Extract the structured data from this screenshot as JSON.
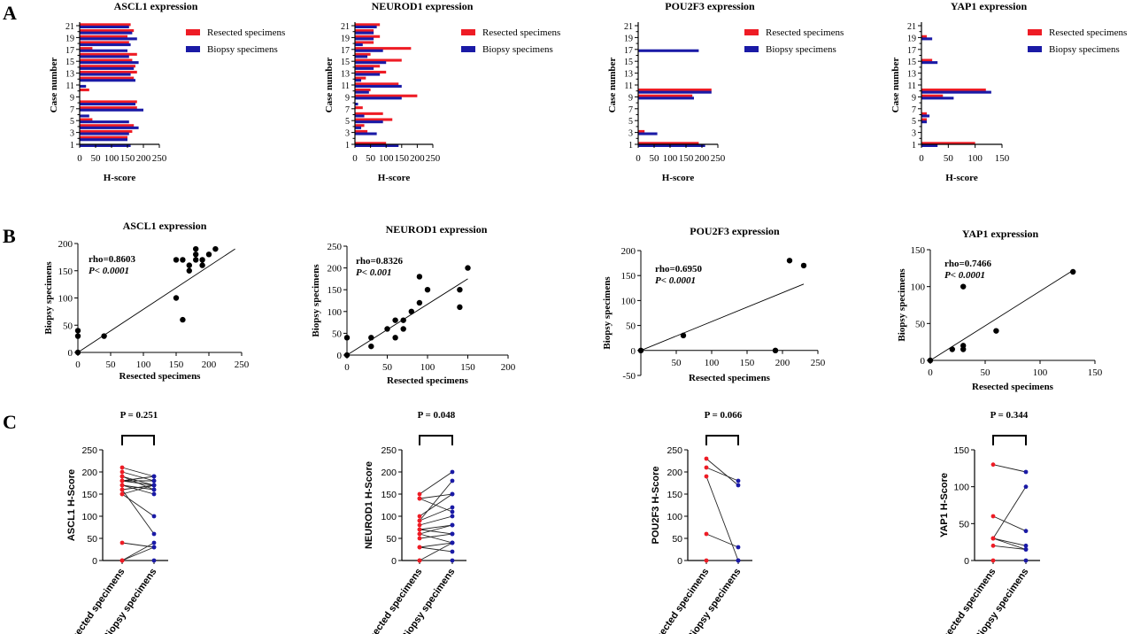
{
  "panel_labels": [
    "A",
    "B",
    "C"
  ],
  "colors": {
    "resected": "#ee1c25",
    "biopsy": "#1a1aa6",
    "ink": "#000000"
  },
  "chart_data": [
    {
      "id": "a-ascl1",
      "type": "bar",
      "orientation": "horizontal",
      "title": "ASCL1 expression",
      "xlabel": "H-score",
      "ylabel": "Case number",
      "xlim": [
        0,
        250
      ],
      "xticks": [
        0,
        50,
        100,
        150,
        200,
        250
      ],
      "ylim": [
        1,
        21
      ],
      "yticks": [
        1,
        3,
        5,
        7,
        9,
        11,
        13,
        15,
        17,
        19,
        21
      ],
      "legend": [
        "Resected specimens",
        "Biopsy specimens"
      ],
      "legend_position": "top-right",
      "resected": [
        0,
        150,
        165,
        170,
        40,
        0,
        180,
        180,
        0,
        30,
        0,
        170,
        180,
        175,
        165,
        180,
        40,
        155,
        150,
        170,
        160
      ],
      "biopsy": [
        160,
        150,
        155,
        185,
        155,
        30,
        200,
        175,
        0,
        0,
        20,
        175,
        160,
        170,
        185,
        155,
        150,
        160,
        180,
        165,
        155
      ]
    },
    {
      "id": "a-neurod1",
      "type": "bar",
      "orientation": "horizontal",
      "title": "NEUROD1 expression",
      "xlabel": "H-score",
      "ylabel": "Case number",
      "xlim": [
        0,
        250
      ],
      "xticks": [
        0,
        50,
        100,
        150,
        200,
        250
      ],
      "ylim": [
        1,
        21
      ],
      "yticks": [
        1,
        3,
        5,
        7,
        9,
        11,
        13,
        15,
        17,
        19,
        21
      ],
      "legend": [
        "Resected specimens",
        "Biopsy specimens"
      ],
      "legend_position": "top-right",
      "resected": [
        100,
        0,
        40,
        30,
        120,
        90,
        25,
        0,
        200,
        50,
        140,
        35,
        100,
        80,
        150,
        50,
        180,
        60,
        80,
        60,
        80
      ],
      "biopsy": [
        140,
        0,
        70,
        20,
        90,
        30,
        0,
        10,
        150,
        45,
        150,
        20,
        80,
        60,
        100,
        40,
        90,
        25,
        60,
        60,
        70
      ]
    },
    {
      "id": "a-pou2f3",
      "type": "bar",
      "orientation": "horizontal",
      "title": "POU2F3 expression",
      "xlabel": "H-score",
      "ylabel": "Case number",
      "xlim": [
        0,
        250
      ],
      "xticks": [
        0,
        50,
        100,
        150,
        200,
        250
      ],
      "ylim": [
        1,
        21
      ],
      "yticks": [
        1,
        3,
        5,
        7,
        9,
        11,
        13,
        15,
        17,
        19,
        21
      ],
      "legend": [
        "Resected specimens",
        "Biopsy specimens"
      ],
      "legend_position": "top-right",
      "resected": [
        190,
        0,
        20,
        0,
        0,
        0,
        0,
        0,
        170,
        230,
        0,
        0,
        0,
        0,
        0,
        0,
        0,
        0,
        0,
        0,
        0
      ],
      "biopsy": [
        210,
        0,
        60,
        0,
        0,
        0,
        0,
        0,
        175,
        230,
        0,
        0,
        0,
        0,
        0,
        0,
        190,
        0,
        0,
        0,
        0
      ]
    },
    {
      "id": "a-yap1",
      "type": "bar",
      "orientation": "horizontal",
      "title": "YAP1 expression",
      "xlabel": "H-score",
      "ylabel": "Case number",
      "xlim": [
        0,
        150
      ],
      "xticks": [
        0,
        50,
        100,
        150
      ],
      "ylim": [
        1,
        21
      ],
      "yticks": [
        1,
        3,
        5,
        7,
        9,
        11,
        13,
        15,
        17,
        19,
        21
      ],
      "legend": [
        "Resected specimens",
        "Biopsy specimens"
      ],
      "legend_position": "top-right",
      "resected": [
        100,
        0,
        0,
        0,
        10,
        10,
        0,
        0,
        40,
        120,
        0,
        0,
        0,
        0,
        20,
        0,
        0,
        0,
        10,
        0,
        0
      ],
      "biopsy": [
        30,
        0,
        0,
        0,
        10,
        15,
        0,
        0,
        60,
        130,
        0,
        0,
        0,
        0,
        30,
        0,
        0,
        0,
        20,
        0,
        0
      ]
    },
    {
      "id": "b-ascl1",
      "type": "scatter",
      "title": "ASCL1 expression",
      "xlabel": "Resected specimens",
      "ylabel": "Biopsy specimens",
      "xlim": [
        0,
        250
      ],
      "xticks": [
        0,
        50,
        100,
        150,
        200,
        250
      ],
      "ylim": [
        0,
        200
      ],
      "yticks": [
        0,
        50,
        100,
        150,
        200
      ],
      "rho": "rho=0.8603",
      "p": "P< 0.0001",
      "fit": [
        [
          0,
          0
        ],
        [
          240,
          190
        ]
      ],
      "points": [
        [
          0,
          0
        ],
        [
          0,
          30
        ],
        [
          0,
          40
        ],
        [
          40,
          30
        ],
        [
          150,
          170
        ],
        [
          150,
          100
        ],
        [
          160,
          170
        ],
        [
          160,
          60
        ],
        [
          170,
          150
        ],
        [
          170,
          160
        ],
        [
          180,
          170
        ],
        [
          180,
          180
        ],
        [
          180,
          190
        ],
        [
          190,
          170
        ],
        [
          190,
          160
        ],
        [
          200,
          180
        ],
        [
          210,
          190
        ]
      ]
    },
    {
      "id": "b-neurod1",
      "type": "scatter",
      "title": "NEUROD1 expression",
      "xlabel": "Resected specimens",
      "ylabel": "Biopsy specimens",
      "xlim": [
        0,
        200
      ],
      "xticks": [
        0,
        50,
        100,
        150,
        200
      ],
      "ylim": [
        0,
        250
      ],
      "yticks": [
        0,
        50,
        100,
        150,
        200,
        250
      ],
      "rho": "rho=0.8326",
      "p": "P< 0.001",
      "fit": [
        [
          0,
          0
        ],
        [
          150,
          175
        ]
      ],
      "points": [
        [
          0,
          0
        ],
        [
          0,
          40
        ],
        [
          30,
          20
        ],
        [
          30,
          40
        ],
        [
          50,
          60
        ],
        [
          60,
          40
        ],
        [
          60,
          80
        ],
        [
          70,
          60
        ],
        [
          70,
          80
        ],
        [
          80,
          100
        ],
        [
          90,
          120
        ],
        [
          90,
          180
        ],
        [
          100,
          150
        ],
        [
          140,
          110
        ],
        [
          140,
          150
        ],
        [
          150,
          200
        ]
      ]
    },
    {
      "id": "b-pou2f3",
      "type": "scatter",
      "title": "POU2F3 expression",
      "xlabel": "Resected specimens",
      "ylabel": "Biopsy specimens",
      "xlim": [
        0,
        250
      ],
      "xticks": [
        50,
        100,
        150,
        200,
        250
      ],
      "ylim": [
        -50,
        200
      ],
      "yticks": [
        -50,
        0,
        50,
        100,
        150,
        200
      ],
      "rho": "rho=0.6950",
      "p": "P< 0.0001",
      "fit": [
        [
          0,
          0
        ],
        [
          230,
          133
        ]
      ],
      "points": [
        [
          0,
          0
        ],
        [
          60,
          30
        ],
        [
          190,
          0
        ],
        [
          210,
          180
        ],
        [
          230,
          170
        ]
      ]
    },
    {
      "id": "b-yap1",
      "type": "scatter",
      "title": "YAP1 expression",
      "xlabel": "Resected specimens",
      "ylabel": "Biopsy specimens",
      "xlim": [
        0,
        150
      ],
      "xticks": [
        0,
        50,
        100,
        150
      ],
      "ylim": [
        0,
        150
      ],
      "yticks": [
        0,
        50,
        100,
        150
      ],
      "rho": "rho=0.7466",
      "p": "P< 0.0001",
      "fit": [
        [
          0,
          0
        ],
        [
          130,
          122
        ]
      ],
      "points": [
        [
          0,
          0
        ],
        [
          20,
          15
        ],
        [
          30,
          15
        ],
        [
          30,
          20
        ],
        [
          30,
          100
        ],
        [
          60,
          40
        ],
        [
          130,
          120
        ]
      ]
    },
    {
      "id": "c-ascl1",
      "type": "paired",
      "ylabel": "ASCL1 H-Score",
      "pvalue": "P = 0.251",
      "categories": [
        "Resected specimens",
        "Biopsy specimens"
      ],
      "ylim": [
        0,
        250
      ],
      "yticks": [
        0,
        50,
        100,
        150,
        200,
        250
      ],
      "pairs": [
        [
          0,
          0
        ],
        [
          0,
          30
        ],
        [
          0,
          40
        ],
        [
          40,
          30
        ],
        [
          150,
          170
        ],
        [
          150,
          100
        ],
        [
          160,
          170
        ],
        [
          160,
          60
        ],
        [
          170,
          150
        ],
        [
          170,
          160
        ],
        [
          180,
          170
        ],
        [
          180,
          180
        ],
        [
          180,
          190
        ],
        [
          190,
          170
        ],
        [
          190,
          160
        ],
        [
          200,
          180
        ],
        [
          210,
          190
        ]
      ]
    },
    {
      "id": "c-neurod1",
      "type": "paired",
      "ylabel": "NEUROD1 H-Score",
      "pvalue": "P = 0.048",
      "categories": [
        "Resected specimens",
        "Biopsy specimens"
      ],
      "ylim": [
        0,
        250
      ],
      "yticks": [
        0,
        50,
        100,
        150,
        200,
        250
      ],
      "pairs": [
        [
          0,
          0
        ],
        [
          0,
          40
        ],
        [
          30,
          20
        ],
        [
          30,
          40
        ],
        [
          50,
          60
        ],
        [
          60,
          40
        ],
        [
          60,
          80
        ],
        [
          70,
          60
        ],
        [
          70,
          80
        ],
        [
          80,
          100
        ],
        [
          90,
          120
        ],
        [
          90,
          180
        ],
        [
          100,
          150
        ],
        [
          140,
          110
        ],
        [
          140,
          150
        ],
        [
          150,
          200
        ]
      ]
    },
    {
      "id": "c-pou2f3",
      "type": "paired",
      "ylabel": "POU2F3 H-Score",
      "pvalue": "P = 0.066",
      "categories": [
        "Resected specimens",
        "Biopsy specimens"
      ],
      "ylim": [
        0,
        250
      ],
      "yticks": [
        0,
        50,
        100,
        150,
        200,
        250
      ],
      "pairs": [
        [
          0,
          0
        ],
        [
          60,
          30
        ],
        [
          190,
          0
        ],
        [
          210,
          180
        ],
        [
          230,
          170
        ]
      ]
    },
    {
      "id": "c-yap1",
      "type": "paired",
      "ylabel": "YAP1 H-Score",
      "pvalue": "P = 0.344",
      "categories": [
        "Resected specimens",
        "Biopsy specimens"
      ],
      "ylim": [
        0,
        150
      ],
      "yticks": [
        0,
        50,
        100,
        150
      ],
      "pairs": [
        [
          0,
          0
        ],
        [
          20,
          15
        ],
        [
          30,
          15
        ],
        [
          30,
          20
        ],
        [
          30,
          100
        ],
        [
          60,
          40
        ],
        [
          130,
          120
        ]
      ]
    }
  ]
}
